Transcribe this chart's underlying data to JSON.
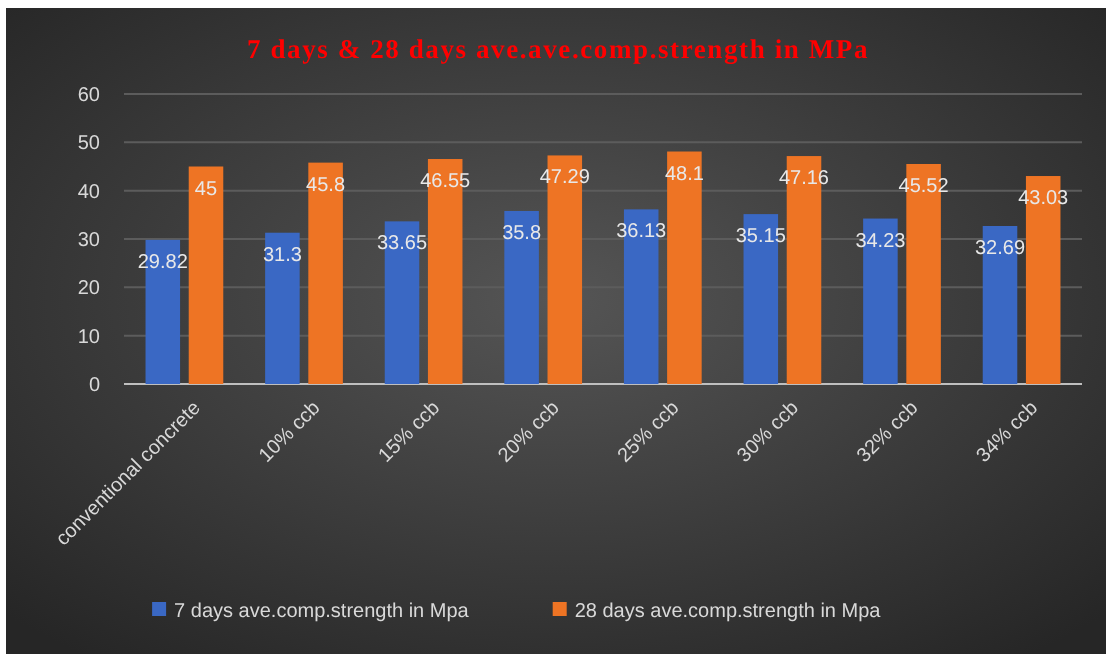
{
  "chart_data": {
    "type": "bar",
    "title": "7 days  & 28 days ave.ave.comp.strength in  MPa",
    "categories": [
      "conventional concrete",
      "10% ccb",
      "15% ccb",
      "20% ccb",
      "25% ccb",
      "30% ccb",
      "32% ccb",
      "34% ccb"
    ],
    "series": [
      {
        "name": "7 days ave.comp.strength in Mpa",
        "color": "#3a68c4",
        "values": [
          29.82,
          31.3,
          33.65,
          35.8,
          36.13,
          35.15,
          34.23,
          32.69
        ]
      },
      {
        "name": "28 days ave.comp.strength in Mpa",
        "color": "#ee7424",
        "values": [
          45,
          45.8,
          46.55,
          47.29,
          48.1,
          47.16,
          45.52,
          43.03
        ]
      }
    ],
    "ylim": [
      0,
      60
    ],
    "yticks": [
      0,
      10,
      20,
      30,
      40,
      50,
      60
    ],
    "grid": "y",
    "legend": "bottom",
    "data_labels": true
  }
}
